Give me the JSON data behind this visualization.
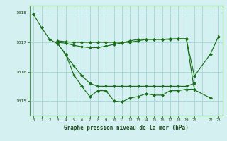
{
  "title": "Graphe pression niveau de la mer (hPa)",
  "background_color": "#d4f0f0",
  "grid_color": "#aad8d8",
  "line_color": "#1a6e1a",
  "marker_color": "#1a6e1a",
  "xlim": [
    -0.5,
    23.5
  ],
  "ylim": [
    1014.5,
    1018.25
  ],
  "yticks": [
    1015,
    1016,
    1017,
    1018
  ],
  "xtick_positions": [
    0,
    1,
    2,
    3,
    4,
    5,
    6,
    7,
    8,
    9,
    10,
    11,
    12,
    13,
    14,
    15,
    16,
    17,
    18,
    19,
    20,
    22,
    23
  ],
  "xtick_labels": [
    "0",
    "1",
    "2",
    "3",
    "4",
    "5",
    "6",
    "7",
    "8",
    "9",
    "10",
    "11",
    "12",
    "13",
    "14",
    "15",
    "16",
    "17",
    "18",
    "19",
    "20",
    "22",
    "23"
  ],
  "s1_x": [
    0,
    1,
    2,
    3,
    4,
    5,
    6,
    7,
    8,
    9,
    10,
    11,
    12,
    13,
    14,
    15,
    16,
    17,
    18,
    19,
    20
  ],
  "s1_y": [
    1017.95,
    1017.5,
    1017.1,
    1016.95,
    1016.6,
    1015.9,
    1015.5,
    1015.15,
    1015.35,
    1015.35,
    1015.0,
    1014.97,
    1015.1,
    1015.15,
    1015.25,
    1015.2,
    1015.2,
    1015.35,
    1015.35,
    1015.4,
    1015.4
  ],
  "s2_x": [
    3,
    4,
    5,
    6,
    7,
    8,
    9,
    10,
    11,
    12,
    13,
    14,
    15,
    16,
    17,
    18,
    19,
    20
  ],
  "s2_y": [
    1016.97,
    1016.57,
    1016.2,
    1015.87,
    1015.6,
    1015.5,
    1015.5,
    1015.5,
    1015.5,
    1015.5,
    1015.5,
    1015.5,
    1015.5,
    1015.5,
    1015.5,
    1015.5,
    1015.5,
    1015.6
  ],
  "s3_x": [
    3,
    4,
    5,
    6,
    7,
    8,
    9,
    10,
    11,
    12,
    13,
    14,
    15,
    16,
    17,
    18,
    19,
    20,
    22,
    23
  ],
  "s3_y": [
    1017.0,
    1016.97,
    1016.9,
    1016.85,
    1016.82,
    1016.82,
    1016.87,
    1016.93,
    1016.98,
    1017.05,
    1017.1,
    1017.1,
    1017.1,
    1017.1,
    1017.12,
    1017.12,
    1017.12,
    1015.85,
    1016.6,
    1017.2
  ],
  "s4_x": [
    3,
    4,
    5,
    6,
    7,
    8,
    9,
    10,
    11,
    12,
    13,
    14,
    15,
    16,
    17,
    18,
    19,
    20,
    22
  ],
  "s4_y": [
    1017.05,
    1017.02,
    1017.0,
    1017.0,
    1017.0,
    1017.0,
    1017.0,
    1017.0,
    1017.0,
    1017.0,
    1017.05,
    1017.1,
    1017.1,
    1017.1,
    1017.1,
    1017.12,
    1017.12,
    1015.38,
    1015.1
  ]
}
